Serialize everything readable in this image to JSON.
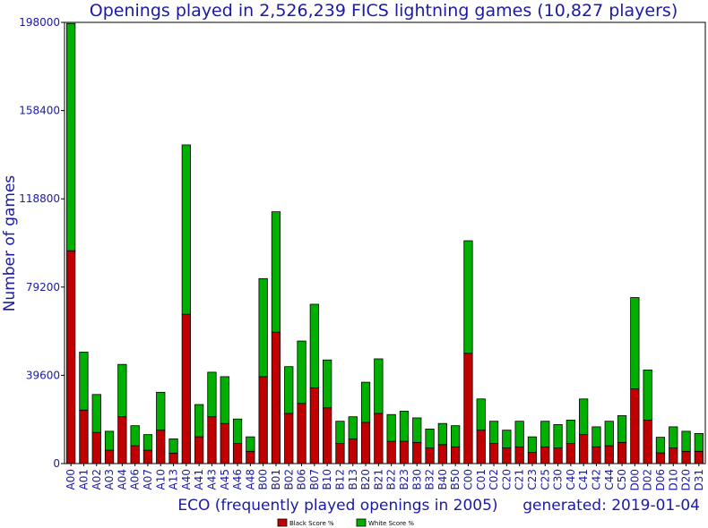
{
  "chart_data": {
    "type": "bar",
    "stacked": true,
    "title": "Openings played in 2,526,239 FICS lightning games (10,827 players)",
    "xlabel": "ECO (frequently played openings in 2005)",
    "ylabel": "Number of games",
    "footer": "generated: 2019-01-04",
    "ylim": [
      0,
      198000
    ],
    "yticks": [
      "0",
      "39600",
      "79200",
      "118800",
      "158400",
      "198000"
    ],
    "ytick_values": [
      0,
      39600,
      79200,
      118800,
      158400,
      198000
    ],
    "grid": false,
    "legend_position": "bottom-center",
    "categories": [
      "A00",
      "A01",
      "A02",
      "A03",
      "A04",
      "A06",
      "A07",
      "A10",
      "A13",
      "A40",
      "A41",
      "A43",
      "A45",
      "A46",
      "A48",
      "B00",
      "B01",
      "B02",
      "B06",
      "B07",
      "B10",
      "B12",
      "B13",
      "B20",
      "B21",
      "B22",
      "B23",
      "B30",
      "B32",
      "B40",
      "B50",
      "C00",
      "C01",
      "C02",
      "C20",
      "C21",
      "C23",
      "C25",
      "C30",
      "C40",
      "C41",
      "C42",
      "C44",
      "C50",
      "D00",
      "D02",
      "D06",
      "D10",
      "D20",
      "D31"
    ],
    "series": [
      {
        "name": "Black Score %",
        "color": "#c00000",
        "values": [
          95500,
          24000,
          14000,
          6000,
          21000,
          8000,
          6000,
          15000,
          4700,
          67000,
          12000,
          21000,
          18000,
          9000,
          5500,
          39000,
          59000,
          22500,
          27000,
          34000,
          25000,
          9000,
          11000,
          18500,
          22500,
          10000,
          10000,
          9500,
          7000,
          8500,
          7500,
          49500,
          15000,
          9000,
          7000,
          7500,
          5000,
          7500,
          7000,
          9000,
          13000,
          7500,
          8000,
          9500,
          33500,
          19500,
          4800,
          7000,
          5500,
          5500
        ]
      },
      {
        "name": "White Score %",
        "color": "#00b000",
        "values": [
          102000,
          26000,
          17000,
          8500,
          23500,
          9000,
          7000,
          17000,
          6400,
          76000,
          14500,
          20000,
          21000,
          11000,
          6500,
          44000,
          54000,
          21000,
          28000,
          37500,
          21500,
          10000,
          10000,
          18000,
          24500,
          12000,
          13500,
          11000,
          8500,
          9500,
          9500,
          50500,
          14000,
          10000,
          8000,
          11500,
          7000,
          11500,
          10500,
          10500,
          16000,
          9000,
          11000,
          12000,
          41000,
          22500,
          7000,
          9500,
          9000,
          8000
        ]
      }
    ]
  }
}
